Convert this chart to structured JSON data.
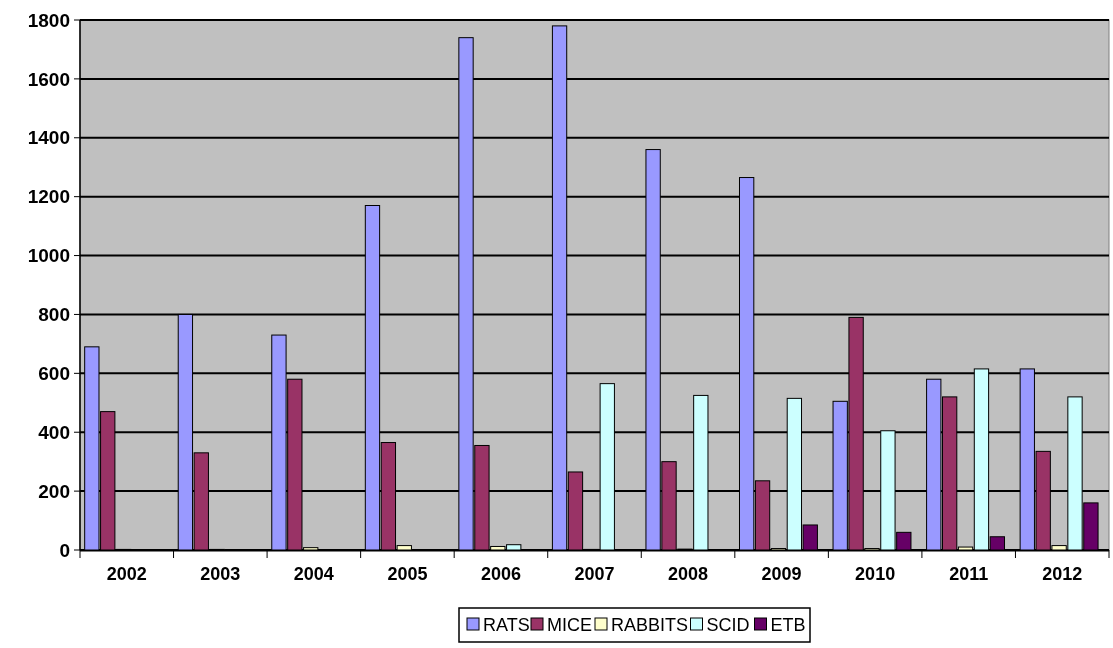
{
  "chart_data": {
    "type": "bar",
    "categories": [
      "2002",
      "2003",
      "2004",
      "2005",
      "2006",
      "2007",
      "2008",
      "2009",
      "2010",
      "2011",
      "2012"
    ],
    "series": [
      {
        "name": "RATS",
        "color": "#9999ff",
        "values": [
          690,
          800,
          730,
          1170,
          1740,
          1780,
          1360,
          1265,
          505,
          580,
          615
        ]
      },
      {
        "name": "MICE",
        "color": "#993366",
        "values": [
          470,
          330,
          580,
          365,
          355,
          265,
          300,
          235,
          790,
          520,
          335
        ]
      },
      {
        "name": "RABBITS",
        "color": "#ffffcc",
        "values": [
          2,
          2,
          8,
          15,
          12,
          2,
          3,
          5,
          5,
          10,
          15
        ]
      },
      {
        "name": "SCID",
        "color": "#ccffff",
        "values": [
          null,
          null,
          null,
          null,
          18,
          565,
          525,
          515,
          405,
          615,
          520
        ]
      },
      {
        "name": "ETB",
        "color": "#660066",
        "values": [
          null,
          null,
          null,
          null,
          null,
          null,
          null,
          85,
          60,
          45,
          160
        ]
      }
    ],
    "ylim": [
      0,
      1800
    ],
    "yticks": [
      0,
      200,
      400,
      600,
      800,
      1000,
      1200,
      1400,
      1600,
      1800
    ],
    "grid": "y",
    "legend": "bottom"
  }
}
